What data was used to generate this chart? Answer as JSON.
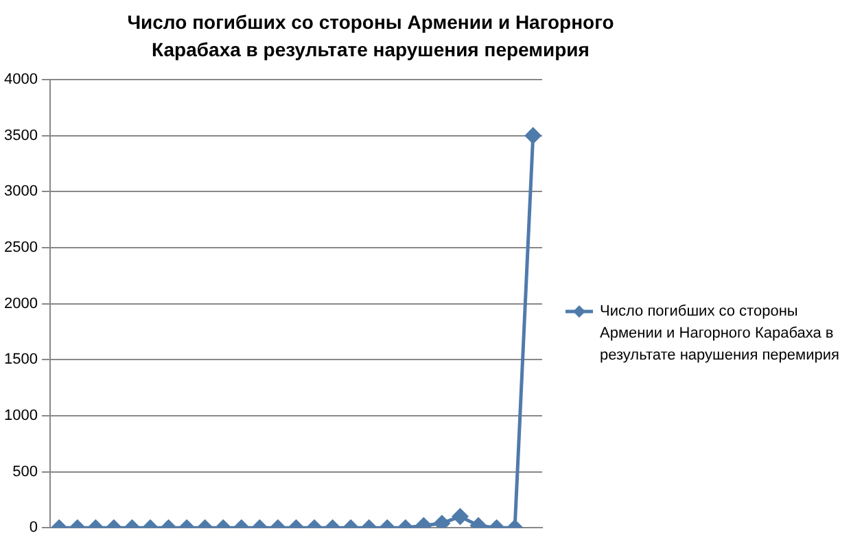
{
  "chart_data": {
    "type": "line",
    "title": "Число погибших со стороны Армении и Нагорного Карабаха в результате нарушения перемирия",
    "categories": [
      null,
      null,
      null,
      null,
      null,
      null,
      null,
      null,
      null,
      null,
      null,
      null,
      null,
      null,
      null,
      null,
      null,
      null,
      null,
      null,
      null,
      null,
      null,
      null,
      null,
      null,
      null
    ],
    "series": [
      {
        "name": "Число погибших со стороны Армении и Нагорного Карабаха в результате нарушения перемирия",
        "color": "#4f7bab",
        "values": [
          0,
          0,
          0,
          0,
          0,
          0,
          0,
          0,
          0,
          0,
          0,
          0,
          0,
          0,
          0,
          0,
          0,
          0,
          0,
          0,
          20,
          40,
          100,
          20,
          0,
          0,
          3500
        ]
      }
    ],
    "ylim": [
      0,
      4000
    ],
    "yticks": [
      0,
      500,
      1000,
      1500,
      2000,
      2500,
      3000,
      3500,
      4000
    ],
    "grid": "y",
    "legend": "right",
    "marker": "diamond",
    "line_style": "solid"
  }
}
